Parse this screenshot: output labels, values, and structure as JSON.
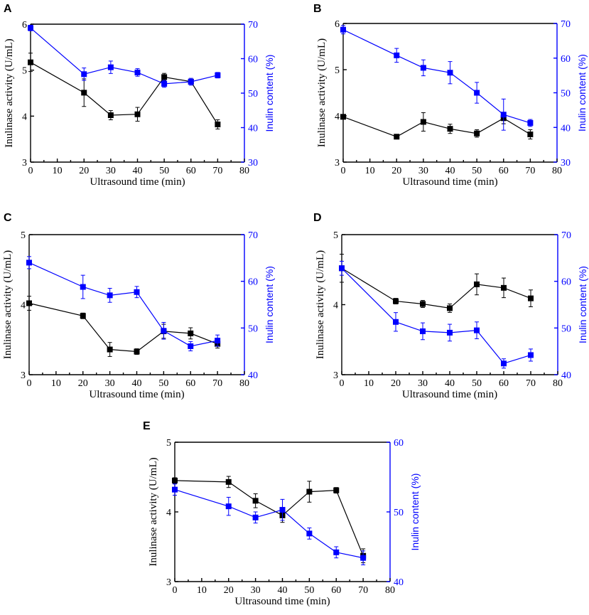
{
  "colors": {
    "activity": "#000000",
    "inulin": "#0000ff"
  },
  "chart_data": [
    {
      "panel": "A",
      "type": "line",
      "xlabel": "Ultrasound time (min)",
      "ylabel": "Inulinase activity (U/mL)",
      "y2label": "Inulin content (%)",
      "xlim": [
        0,
        80
      ],
      "xticks": [
        0,
        10,
        20,
        30,
        40,
        50,
        60,
        70,
        80
      ],
      "ylim": [
        3,
        6
      ],
      "yticks": [
        3,
        4,
        5,
        6
      ],
      "y2lim": [
        30,
        70
      ],
      "y2ticks": [
        30,
        40,
        50,
        60,
        70
      ],
      "x": [
        0,
        20,
        30,
        40,
        50,
        60,
        70
      ],
      "series": [
        {
          "name": "Inulinase activity",
          "axis": "left",
          "color": "#000000",
          "values": [
            5.17,
            4.51,
            4.02,
            4.04,
            4.85,
            4.75,
            3.82
          ],
          "errors": [
            0.2,
            0.3,
            0.1,
            0.15,
            0.08,
            0.05,
            0.1
          ]
        },
        {
          "name": "Inulin content",
          "axis": "right",
          "color": "#0000ff",
          "values": [
            68.9,
            55.5,
            57.5,
            56.0,
            52.7,
            53.3,
            55.2
          ],
          "errors": [
            0.8,
            1.8,
            1.8,
            1.1,
            1.0,
            1.0,
            0.8
          ]
        }
      ]
    },
    {
      "panel": "B",
      "type": "line",
      "xlabel": "Ultrasound time (min)",
      "ylabel": "Inulinase activity (U/mL)",
      "y2label": "Inulin content (%)",
      "xlim": [
        0,
        80
      ],
      "xticks": [
        0,
        10,
        20,
        30,
        40,
        50,
        60,
        70,
        80
      ],
      "ylim": [
        3,
        6
      ],
      "yticks": [
        3,
        4,
        5,
        6
      ],
      "y2lim": [
        30,
        70
      ],
      "y2ticks": [
        30,
        40,
        50,
        60,
        70
      ],
      "x": [
        0,
        20,
        30,
        40,
        50,
        60,
        70
      ],
      "series": [
        {
          "name": "Inulinase activity",
          "axis": "left",
          "color": "#000000",
          "values": [
            3.98,
            3.55,
            3.87,
            3.72,
            3.62,
            3.95,
            3.6
          ],
          "errors": [
            0.05,
            0.03,
            0.2,
            0.1,
            0.08,
            0.12,
            0.1
          ]
        },
        {
          "name": "Inulin content",
          "axis": "right",
          "color": "#0000ff",
          "values": [
            68.2,
            60.8,
            57.2,
            55.8,
            50.0,
            43.7,
            41.3
          ],
          "errors": [
            1.2,
            2.0,
            2.3,
            3.2,
            3.0,
            4.5,
            1.0
          ]
        }
      ]
    },
    {
      "panel": "C",
      "type": "line",
      "xlabel": "Ultrasound time (min)",
      "ylabel": "Inulinase activity (U/mL)",
      "y2label": "Inulin content (%)",
      "xlim": [
        0,
        80
      ],
      "xticks": [
        0,
        10,
        20,
        30,
        40,
        50,
        60,
        70,
        80
      ],
      "ylim": [
        3,
        5
      ],
      "yticks": [
        3,
        4,
        5
      ],
      "y2lim": [
        40,
        70
      ],
      "y2ticks": [
        40,
        50,
        60,
        70
      ],
      "x": [
        0,
        20,
        30,
        40,
        50,
        60,
        70
      ],
      "series": [
        {
          "name": "Inulinase activity",
          "axis": "left",
          "color": "#000000",
          "values": [
            4.02,
            3.84,
            3.36,
            3.33,
            3.62,
            3.59,
            3.44
          ],
          "errors": [
            0.1,
            0.04,
            0.1,
            0.04,
            0.1,
            0.08,
            0.06
          ]
        },
        {
          "name": "Inulin content",
          "axis": "right",
          "color": "#0000ff",
          "values": [
            64.0,
            58.8,
            57.0,
            57.7,
            49.4,
            46.1,
            47.3
          ],
          "errors": [
            1.3,
            2.5,
            1.5,
            1.2,
            1.8,
            1.0,
            1.2
          ]
        }
      ]
    },
    {
      "panel": "D",
      "type": "line",
      "xlabel": "Ultrasound time (min)",
      "ylabel": "Inulinase activity (U/mL)",
      "y2label": "Inulin content (%)",
      "xlim": [
        0,
        80
      ],
      "xticks": [
        0,
        10,
        20,
        30,
        40,
        50,
        60,
        70,
        80
      ],
      "ylim": [
        3,
        5
      ],
      "yticks": [
        3,
        4,
        5
      ],
      "y2lim": [
        40,
        70
      ],
      "y2ticks": [
        40,
        50,
        60,
        70
      ],
      "x": [
        0,
        20,
        30,
        40,
        50,
        60,
        70
      ],
      "series": [
        {
          "name": "Inulinase activity",
          "axis": "left",
          "color": "#000000",
          "values": [
            4.52,
            4.05,
            4.01,
            3.95,
            4.29,
            4.24,
            4.09
          ],
          "errors": [
            0.2,
            0.04,
            0.05,
            0.06,
            0.15,
            0.14,
            0.12
          ]
        },
        {
          "name": "Inulin content",
          "axis": "right",
          "color": "#0000ff",
          "values": [
            62.8,
            51.3,
            49.3,
            49.0,
            49.5,
            42.4,
            44.2
          ],
          "errors": [
            1.5,
            2.0,
            1.8,
            1.8,
            1.8,
            1.0,
            1.3
          ]
        }
      ]
    },
    {
      "panel": "E",
      "type": "line",
      "xlabel": "Ultrasound time (min)",
      "ylabel": "Inulinase activity (U/mL)",
      "y2label": "Inulin content (%)",
      "xlim": [
        0,
        80
      ],
      "xticks": [
        0,
        10,
        20,
        30,
        40,
        50,
        60,
        70,
        80
      ],
      "ylim": [
        3,
        5
      ],
      "yticks": [
        3,
        4,
        5
      ],
      "y2lim": [
        40,
        60
      ],
      "y2ticks": [
        40,
        50,
        60
      ],
      "x": [
        0,
        20,
        30,
        40,
        50,
        60,
        70
      ],
      "series": [
        {
          "name": "Inulinase activity",
          "axis": "left",
          "color": "#000000",
          "values": [
            4.45,
            4.43,
            4.16,
            3.95,
            4.29,
            4.31,
            3.37
          ],
          "errors": [
            0.04,
            0.08,
            0.1,
            0.1,
            0.15,
            0.04,
            0.1
          ]
        },
        {
          "name": "Inulin content",
          "axis": "right",
          "color": "#0000ff",
          "values": [
            53.2,
            50.8,
            49.2,
            50.3,
            46.9,
            44.2,
            43.4
          ],
          "errors": [
            0.8,
            1.3,
            0.8,
            1.5,
            0.8,
            0.8,
            1.0
          ]
        }
      ]
    }
  ]
}
